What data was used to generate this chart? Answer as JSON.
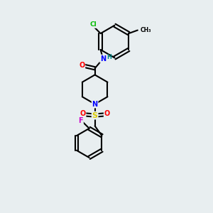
{
  "background_color": "#e8eef0",
  "bond_color": "#000000",
  "atom_colors": {
    "N": "#0000ff",
    "O": "#ff0000",
    "S": "#ddcc00",
    "Cl": "#00bb00",
    "F": "#cc00cc",
    "H": "#008888",
    "C": "#000000"
  }
}
